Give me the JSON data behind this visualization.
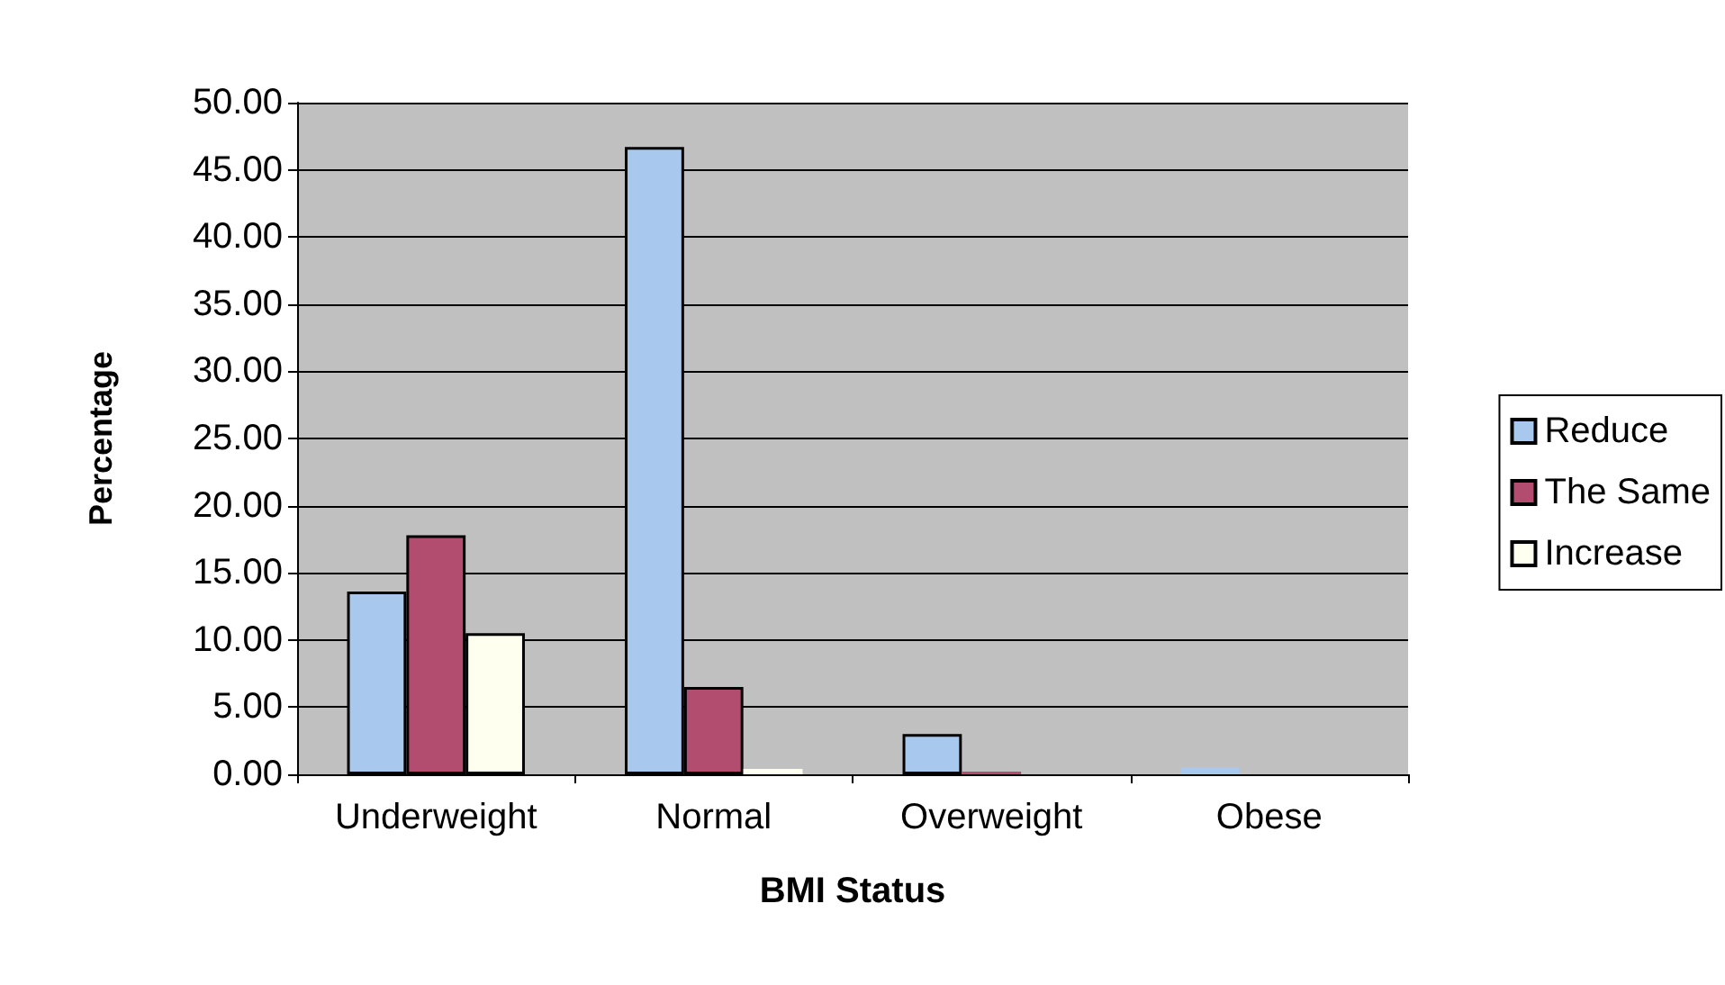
{
  "chart_data": {
    "type": "bar",
    "xlabel": "BMI Status",
    "ylabel": "Percentage",
    "categories": [
      "Underweight",
      "Normal",
      "Overweight",
      "Obese"
    ],
    "series": [
      {
        "name": "Reduce",
        "color": "#a9c8ee",
        "values": [
          13.6,
          46.7,
          3.0,
          0.5
        ]
      },
      {
        "name": "The Same",
        "color": "#b34d6f",
        "values": [
          17.8,
          6.5,
          0.2,
          null
        ]
      },
      {
        "name": "Increase",
        "color": "#fffff0",
        "values": [
          10.5,
          0.4,
          null,
          null
        ]
      }
    ],
    "ylim": [
      0,
      50
    ],
    "yticks": [
      {
        "value": 0,
        "label": "0.00"
      },
      {
        "value": 5,
        "label": "5.00"
      },
      {
        "value": 10,
        "label": "10.00"
      },
      {
        "value": 15,
        "label": "15.00"
      },
      {
        "value": 20,
        "label": "20.00"
      },
      {
        "value": 25,
        "label": "25.00"
      },
      {
        "value": 30,
        "label": "30.00"
      },
      {
        "value": 35,
        "label": "35.00"
      },
      {
        "value": 40,
        "label": "40.00"
      },
      {
        "value": 45,
        "label": "45.00"
      },
      {
        "value": 50,
        "label": "50.00"
      }
    ],
    "grid": "y",
    "legend": "right"
  }
}
